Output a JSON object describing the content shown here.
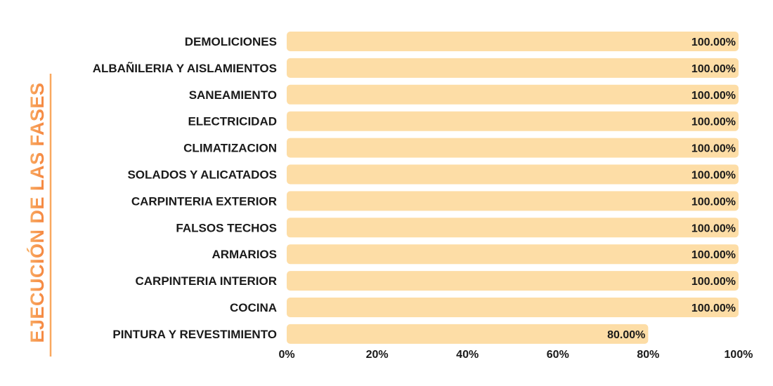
{
  "chart_data": {
    "type": "bar",
    "orientation": "horizontal",
    "title": "EJECUCIÓN DE LAS FASES",
    "title_placement": "left-vertical",
    "categories": [
      "DEMOLICIONES",
      "ALBAÑILERIA Y AISLAMIENTOS",
      "SANEAMIENTO",
      "ELECTRICIDAD",
      "CLIMATIZACION",
      "SOLADOS Y ALICATADOS",
      "CARPINTERIA EXTERIOR",
      "FALSOS TECHOS",
      "ARMARIOS",
      "CARPINTERIA INTERIOR",
      "COCINA",
      "PINTURA Y REVESTIMIENTO"
    ],
    "values": [
      100,
      100,
      100,
      100,
      100,
      100,
      100,
      100,
      100,
      100,
      100,
      80
    ],
    "data_labels": [
      "100.00%",
      "100.00%",
      "100.00%",
      "100.00%",
      "100.00%",
      "100.00%",
      "100.00%",
      "100.00%",
      "100.00%",
      "100.00%",
      "100.00%",
      "80.00%"
    ],
    "x_ticks": [
      "0%",
      "20%",
      "40%",
      "60%",
      "80%",
      "100%"
    ],
    "x_tick_values": [
      0,
      20,
      40,
      60,
      80,
      100
    ],
    "xlim": [
      0,
      100
    ],
    "grid": false,
    "legend": "none",
    "colors": {
      "bar": "#FDDDA6",
      "title_gradient_start": "#F47E38",
      "title_gradient_end": "#F9B36A",
      "accent_line": "#F9A85F",
      "text": "#1a1a1a"
    }
  }
}
